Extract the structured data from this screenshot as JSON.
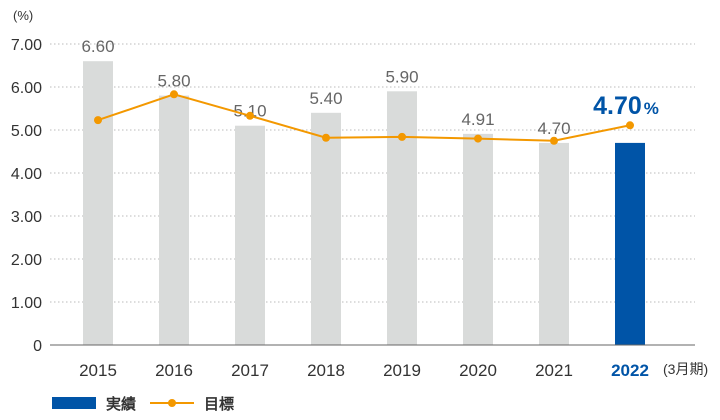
{
  "chart_data": {
    "type": "bar",
    "y_unit": "(%)",
    "x_unit": "(3月期)",
    "categories": [
      "2015",
      "2016",
      "2017",
      "2018",
      "2019",
      "2020",
      "2021",
      "2022"
    ],
    "series": [
      {
        "name": "実績",
        "type": "bar",
        "values": [
          6.6,
          5.8,
          5.1,
          5.4,
          5.9,
          4.91,
          4.7,
          4.7
        ],
        "labels": [
          "6.60",
          "5.80",
          "5.10",
          "5.40",
          "5.90",
          "4.91",
          "4.70",
          "4.70"
        ]
      },
      {
        "name": "目標",
        "type": "line",
        "values": [
          5.23,
          5.83,
          5.33,
          4.82,
          4.84,
          4.8,
          4.75,
          5.11
        ]
      }
    ],
    "highlight": {
      "index": 7,
      "value_text": "4.70",
      "unit_text": "%"
    },
    "yticks": [
      "0",
      "1.00",
      "2.00",
      "3.00",
      "4.00",
      "5.00",
      "6.00",
      "7.00"
    ],
    "ylim": [
      0,
      7
    ],
    "grid": true,
    "legend_position": "bottom-left",
    "colors": {
      "bar": "#d9dbda",
      "highlight_bar": "#0054a7",
      "line": "#f39800",
      "grid": "#bbbbbb",
      "axis": "#666666",
      "highlight_text": "#0054a7"
    }
  }
}
